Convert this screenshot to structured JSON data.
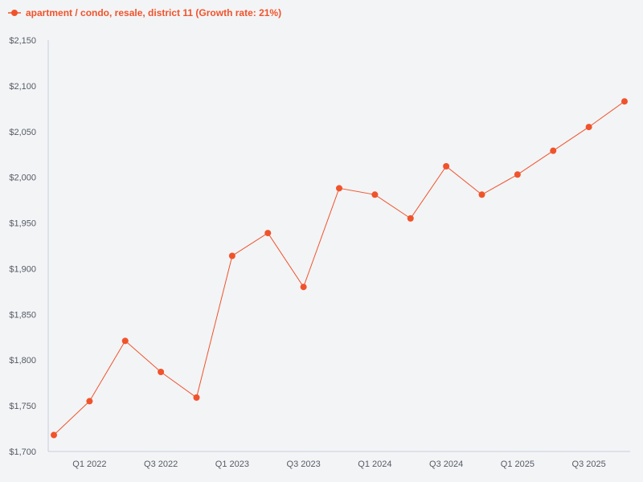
{
  "chart_data": {
    "type": "line",
    "title": "",
    "xlabel": "",
    "ylabel": "",
    "legend_position": "top-left",
    "grid": false,
    "colors": {
      "series": "#f0532b",
      "axis": "#c8cde0",
      "background": "#f3f4f6"
    },
    "ylim": [
      1700,
      2150
    ],
    "y_ticks": [
      1700,
      1750,
      1800,
      1850,
      1900,
      1950,
      2000,
      2050,
      2100,
      2150
    ],
    "y_tick_labels": [
      "$1,700",
      "$1,750",
      "$1,800",
      "$1,850",
      "$1,900",
      "$1,950",
      "$2,000",
      "$2,050",
      "$2,100",
      "$2,150"
    ],
    "x_tick_labels": [
      "Q1 2022",
      "Q3 2022",
      "Q1 2023",
      "Q3 2023",
      "Q1 2024",
      "Q3 2024",
      "Q1 2025",
      "Q3 2025"
    ],
    "x_tick_indices": [
      1,
      3,
      5,
      7,
      9,
      11,
      13,
      15
    ],
    "series": [
      {
        "name": "apartment / condo, resale, district 11 (Growth rate: 21%)",
        "values": [
          1718,
          1755,
          1821,
          1787,
          1759,
          1914,
          1939,
          1880,
          1988,
          1981,
          1955,
          2012,
          1981,
          2003,
          2029,
          2055,
          2083
        ]
      }
    ]
  }
}
